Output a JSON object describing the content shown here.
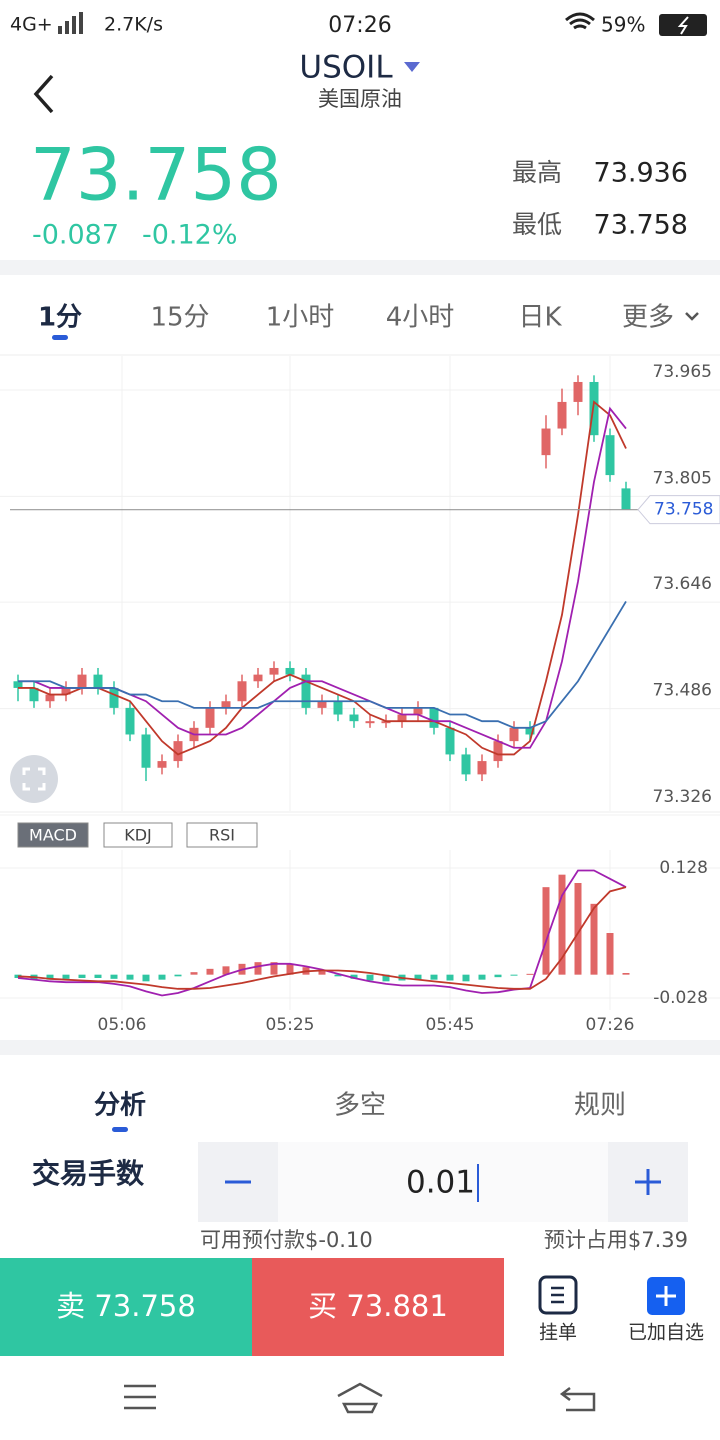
{
  "status_bar": {
    "network": "4G+",
    "speed": "2.7K/s",
    "time": "07:26",
    "battery": "59%"
  },
  "header": {
    "symbol": "USOIL",
    "name": "美国原油"
  },
  "quote": {
    "price": "73.758",
    "change": "-0.087",
    "change_pct": "-0.12%",
    "high_label": "最高",
    "high": "73.936",
    "low_label": "最低",
    "low": "73.758"
  },
  "timeframes": [
    "1分",
    "15分",
    "1小时",
    "4小时",
    "日K",
    "更多"
  ],
  "chart_data": [
    {
      "type": "candlestick",
      "xlim": [
        0,
        38
      ],
      "ylim": [
        73.326,
        73.965
      ],
      "yticks": [
        73.326,
        73.486,
        73.646,
        73.805,
        73.965
      ],
      "up_color": "#e06666",
      "down_color": "#2fc6a2",
      "last_price": 73.758,
      "open": [
        73.5,
        73.49,
        73.47,
        73.48,
        73.49,
        73.51,
        73.49,
        73.46,
        73.42,
        73.37,
        73.38,
        73.41,
        73.43,
        73.46,
        73.47,
        73.5,
        73.51,
        73.52,
        73.51,
        73.46,
        73.47,
        73.45,
        73.44,
        73.44,
        73.44,
        73.45,
        73.46,
        73.43,
        73.39,
        73.36,
        73.38,
        73.41,
        73.43,
        73.84,
        73.88,
        73.92,
        73.95,
        73.87,
        73.79
      ],
      "high": [
        73.51,
        73.5,
        73.49,
        73.5,
        73.52,
        73.52,
        73.5,
        73.47,
        73.43,
        73.39,
        73.42,
        73.44,
        73.47,
        73.48,
        73.51,
        73.52,
        73.53,
        73.53,
        73.52,
        73.48,
        73.48,
        73.46,
        73.45,
        73.45,
        73.46,
        73.47,
        73.46,
        73.44,
        73.4,
        73.39,
        73.42,
        73.44,
        73.44,
        73.9,
        73.94,
        73.96,
        73.96,
        73.88,
        73.8
      ],
      "low": [
        73.47,
        73.46,
        73.46,
        73.47,
        73.48,
        73.48,
        73.45,
        73.41,
        73.35,
        73.36,
        73.37,
        73.4,
        73.42,
        73.45,
        73.46,
        73.49,
        73.5,
        73.5,
        73.45,
        73.45,
        73.44,
        73.43,
        73.43,
        73.43,
        73.43,
        73.44,
        73.42,
        73.38,
        73.35,
        73.35,
        73.37,
        73.4,
        73.41,
        73.82,
        73.87,
        73.9,
        73.86,
        73.8,
        73.758
      ],
      "close": [
        73.49,
        73.47,
        73.48,
        73.49,
        73.51,
        73.49,
        73.46,
        73.42,
        73.37,
        73.38,
        73.41,
        73.43,
        73.46,
        73.47,
        73.5,
        73.51,
        73.52,
        73.51,
        73.46,
        73.47,
        73.45,
        73.44,
        73.44,
        73.44,
        73.45,
        73.46,
        73.43,
        73.39,
        73.36,
        73.38,
        73.41,
        73.43,
        73.42,
        73.88,
        73.92,
        73.95,
        73.87,
        73.81,
        73.758
      ],
      "series": [
        {
          "color": "#c0392b",
          "values": [
            73.49,
            73.49,
            73.48,
            73.48,
            73.49,
            73.49,
            73.48,
            73.47,
            73.44,
            73.41,
            73.39,
            73.4,
            73.41,
            73.43,
            73.46,
            73.48,
            73.5,
            73.51,
            73.5,
            73.49,
            73.48,
            73.47,
            73.45,
            73.44,
            73.44,
            73.44,
            73.44,
            73.43,
            73.42,
            73.4,
            73.39,
            73.39,
            73.41,
            73.5,
            73.6,
            73.75,
            73.92,
            73.9,
            73.85
          ]
        },
        {
          "color": "#a020b0",
          "values": [
            73.5,
            73.5,
            73.49,
            73.49,
            73.49,
            73.49,
            73.49,
            73.48,
            73.47,
            73.45,
            73.43,
            73.42,
            73.42,
            73.42,
            73.43,
            73.45,
            73.47,
            73.49,
            73.5,
            73.5,
            73.49,
            73.48,
            73.47,
            73.46,
            73.45,
            73.45,
            73.44,
            73.44,
            73.43,
            73.42,
            73.41,
            73.4,
            73.4,
            73.44,
            73.53,
            73.65,
            73.8,
            73.91,
            73.88
          ]
        },
        {
          "color": "#3a6fb0",
          "values": [
            73.5,
            73.5,
            73.5,
            73.49,
            73.49,
            73.49,
            73.49,
            73.48,
            73.48,
            73.47,
            73.47,
            73.46,
            73.46,
            73.46,
            73.46,
            73.46,
            73.47,
            73.47,
            73.47,
            73.47,
            73.47,
            73.47,
            73.47,
            73.46,
            73.46,
            73.46,
            73.46,
            73.45,
            73.45,
            73.44,
            73.44,
            73.43,
            73.43,
            73.44,
            73.47,
            73.5,
            73.54,
            73.58,
            73.62
          ]
        }
      ]
    },
    {
      "type": "macd",
      "indicators": [
        "MACD",
        "KDJ",
        "RSI"
      ],
      "xlim": [
        0,
        38
      ],
      "ylim": [
        -0.028,
        0.128
      ],
      "yticks": [
        -0.028,
        0.128
      ],
      "xticks": [
        {
          "value": 6.5,
          "label": "05:06"
        },
        {
          "value": 17,
          "label": "05:25"
        },
        {
          "value": 27,
          "label": "05:45"
        },
        {
          "value": 37,
          "label": "07:26"
        }
      ],
      "up_color": "#e06666",
      "down_color": "#2fc6a2",
      "values": [
        -0.004,
        -0.006,
        -0.006,
        -0.005,
        -0.004,
        -0.004,
        -0.005,
        -0.006,
        -0.008,
        -0.006,
        -0.002,
        0.003,
        0.007,
        0.01,
        0.013,
        0.015,
        0.015,
        0.013,
        0.009,
        0.004,
        -0.002,
        -0.005,
        -0.007,
        -0.008,
        -0.007,
        -0.006,
        -0.006,
        -0.007,
        -0.008,
        -0.006,
        -0.003,
        -0.001,
        0.001,
        0.105,
        0.12,
        0.11,
        0.085,
        0.05,
        0.002
      ],
      "series": [
        {
          "color": "#a020b0",
          "values": [
            -0.004,
            -0.006,
            -0.008,
            -0.009,
            -0.009,
            -0.009,
            -0.011,
            -0.014,
            -0.02,
            -0.025,
            -0.022,
            -0.016,
            -0.008,
            0.0,
            0.006,
            0.01,
            0.013,
            0.013,
            0.01,
            0.006,
            0.001,
            -0.004,
            -0.008,
            -0.011,
            -0.013,
            -0.013,
            -0.013,
            -0.015,
            -0.019,
            -0.022,
            -0.021,
            -0.018,
            -0.016,
            0.04,
            0.095,
            0.125,
            0.125,
            0.115,
            0.105
          ]
        },
        {
          "color": "#c0392b",
          "values": [
            -0.002,
            -0.003,
            -0.005,
            -0.006,
            -0.007,
            -0.008,
            -0.008,
            -0.01,
            -0.012,
            -0.015,
            -0.017,
            -0.017,
            -0.016,
            -0.013,
            -0.01,
            -0.006,
            -0.002,
            0.001,
            0.004,
            0.005,
            0.005,
            0.004,
            0.002,
            -0.001,
            -0.004,
            -0.006,
            -0.008,
            -0.01,
            -0.012,
            -0.014,
            -0.016,
            -0.017,
            -0.017,
            -0.005,
            0.02,
            0.05,
            0.08,
            0.1,
            0.105
          ]
        }
      ]
    }
  ],
  "trade": {
    "tabs": [
      "分析",
      "多空",
      "规则"
    ],
    "lot_label": "交易手数",
    "lot": "0.01",
    "available": "可用预付款$-0.10",
    "margin": "预计占用$7.39",
    "sell": "卖 73.758",
    "buy": "买 73.881",
    "pending": "挂单",
    "watchlist": "已加自选"
  }
}
